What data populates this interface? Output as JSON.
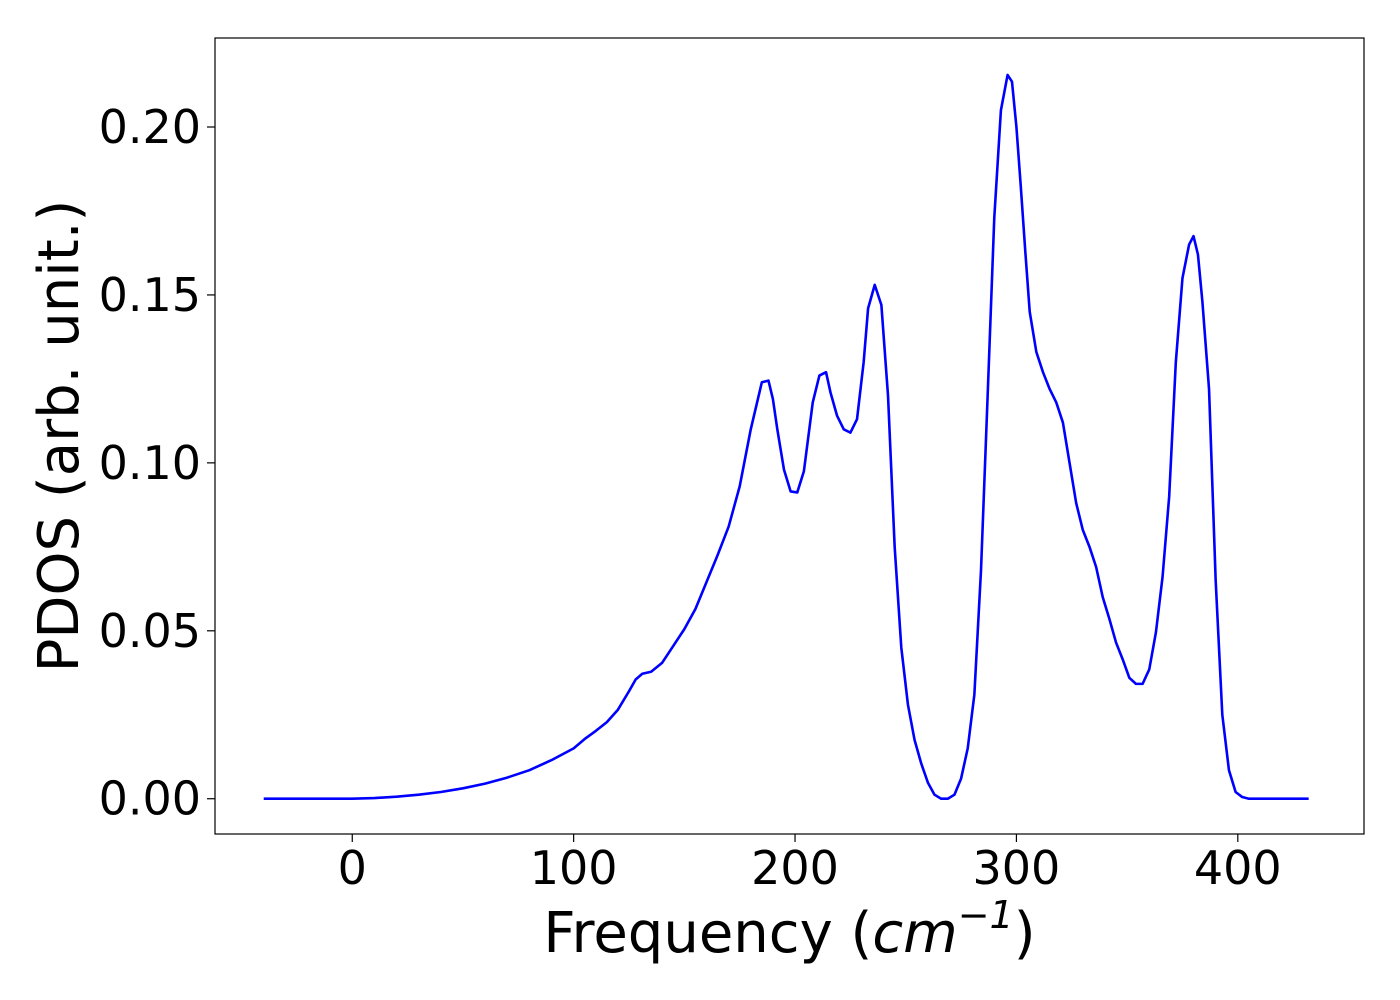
{
  "chart_data": {
    "type": "line",
    "title": "",
    "xlabel": "Frequency (cm⁻¹)",
    "xlabel_parts": {
      "prefix": "Frequency (",
      "unit": "cm",
      "exponent": "−1",
      "suffix": ")"
    },
    "ylabel": "PDOS (arb. unit.)",
    "xlim": [
      -62,
      457
    ],
    "ylim": [
      -0.0105,
      0.2265
    ],
    "xticks": [
      0,
      100,
      200,
      300,
      400
    ],
    "xtick_labels": [
      "0",
      "100",
      "200",
      "300",
      "400"
    ],
    "yticks": [
      0.0,
      0.05,
      0.1,
      0.15,
      0.2
    ],
    "ytick_labels": [
      "0.00",
      "0.05",
      "0.10",
      "0.15",
      "0.20"
    ],
    "grid": false,
    "legend": "none",
    "series": [
      {
        "color": "#0000ff",
        "x": [
          -40,
          0,
          10,
          20,
          30,
          40,
          50,
          60,
          70,
          80,
          90,
          100,
          105,
          110,
          115,
          120,
          125,
          128,
          131,
          135,
          140,
          145,
          150,
          155,
          160,
          165,
          170,
          175,
          180,
          185,
          188,
          190,
          192,
          195,
          198,
          201,
          204,
          208,
          211,
          214,
          216,
          219,
          222,
          225,
          228,
          231,
          233,
          236,
          239,
          242,
          245,
          248,
          251,
          254,
          257,
          260,
          263,
          266,
          269,
          272,
          275,
          278,
          281,
          284,
          287,
          290,
          293,
          296,
          298,
          300,
          302,
          304,
          306,
          309,
          312,
          315,
          318,
          321,
          324,
          327,
          330,
          333,
          336,
          339,
          342,
          345,
          348,
          351,
          354,
          357,
          360,
          363,
          366,
          369,
          372,
          375,
          378,
          380,
          382,
          384,
          387,
          390,
          393,
          396,
          399,
          402,
          405,
          410,
          420,
          432
        ],
        "y": [
          0.0,
          0.0,
          0.0002,
          0.0006,
          0.0012,
          0.002,
          0.0031,
          0.0045,
          0.0063,
          0.0085,
          0.0115,
          0.015,
          0.0178,
          0.0202,
          0.0228,
          0.0265,
          0.032,
          0.0355,
          0.0372,
          0.0378,
          0.0405,
          0.0455,
          0.0505,
          0.0565,
          0.0645,
          0.0725,
          0.081,
          0.093,
          0.11,
          0.124,
          0.1245,
          0.119,
          0.11,
          0.098,
          0.0915,
          0.0912,
          0.0975,
          0.118,
          0.126,
          0.127,
          0.121,
          0.114,
          0.11,
          0.109,
          0.113,
          0.13,
          0.146,
          0.153,
          0.147,
          0.12,
          0.075,
          0.045,
          0.028,
          0.0175,
          0.0105,
          0.0048,
          0.0012,
          0.0,
          0.0,
          0.0012,
          0.006,
          0.015,
          0.031,
          0.068,
          0.12,
          0.173,
          0.205,
          0.2155,
          0.2135,
          0.2,
          0.182,
          0.163,
          0.145,
          0.133,
          0.127,
          0.122,
          0.118,
          0.112,
          0.1,
          0.088,
          0.08,
          0.075,
          0.069,
          0.06,
          0.0535,
          0.0465,
          0.0415,
          0.036,
          0.0342,
          0.0342,
          0.0385,
          0.0495,
          0.066,
          0.09,
          0.13,
          0.155,
          0.165,
          0.1675,
          0.162,
          0.148,
          0.122,
          0.065,
          0.025,
          0.0085,
          0.002,
          0.0005,
          0.0,
          0.0,
          0.0,
          0.0
        ]
      }
    ]
  }
}
